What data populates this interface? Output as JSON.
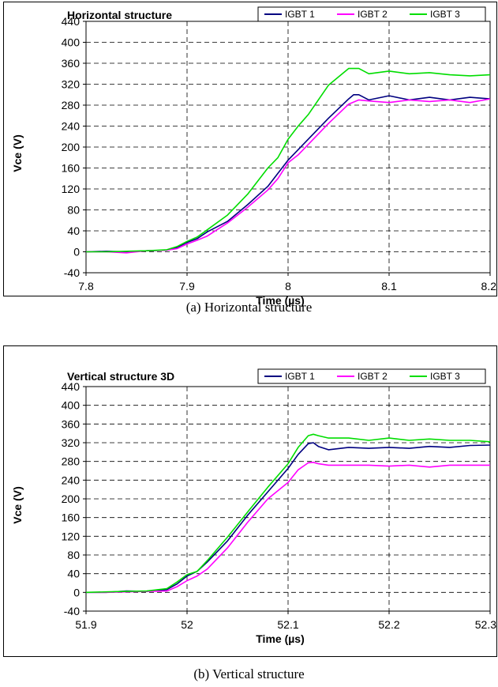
{
  "captions": {
    "a": "(a) Horizontal structure",
    "b": "(b) Vertical structure"
  },
  "chart_data": [
    {
      "type": "line",
      "title": "Horizontal structure",
      "xlabel": "Time (µs)",
      "ylabel": "Vce (V)",
      "xlim": [
        7.8,
        8.2
      ],
      "ylim": [
        -40,
        440
      ],
      "x_ticks": [
        "7.8",
        "7.9",
        "8",
        "8.1",
        "8.2"
      ],
      "y_ticks": [
        "-40",
        "0",
        "40",
        "80",
        "120",
        "160",
        "200",
        "240",
        "280",
        "320",
        "360",
        "400",
        "440"
      ],
      "grid": "dashed vertical and horizontal",
      "legend": "top-right, horizontal",
      "series": [
        {
          "name": "IGBT 1",
          "color": "#000080",
          "x": [
            7.8,
            7.82,
            7.84,
            7.86,
            7.88,
            7.89,
            7.9,
            7.91,
            7.92,
            7.94,
            7.96,
            7.98,
            7.99,
            8.0,
            8.01,
            8.02,
            8.04,
            8.06,
            8.065,
            8.07,
            8.08,
            8.1,
            8.12,
            8.14,
            8.16,
            8.18,
            8.2
          ],
          "y": [
            0,
            1,
            0,
            2,
            3,
            8,
            18,
            25,
            38,
            58,
            90,
            125,
            150,
            175,
            195,
            215,
            255,
            292,
            300,
            300,
            290,
            298,
            290,
            295,
            290,
            295,
            292
          ]
        },
        {
          "name": "IGBT 2",
          "color": "#ff00ff",
          "x": [
            7.8,
            7.82,
            7.84,
            7.86,
            7.88,
            7.89,
            7.9,
            7.91,
            7.92,
            7.94,
            7.96,
            7.98,
            7.99,
            8.0,
            8.01,
            8.02,
            8.04,
            8.06,
            8.07,
            8.08,
            8.1,
            8.12,
            8.14,
            8.16,
            8.18,
            8.2
          ],
          "y": [
            0,
            0,
            -2,
            2,
            3,
            6,
            15,
            22,
            30,
            55,
            85,
            118,
            140,
            170,
            185,
            205,
            245,
            282,
            290,
            288,
            285,
            290,
            287,
            290,
            285,
            292
          ]
        },
        {
          "name": "IGBT 3",
          "color": "#00dd00",
          "x": [
            7.8,
            7.82,
            7.84,
            7.86,
            7.88,
            7.89,
            7.9,
            7.91,
            7.92,
            7.94,
            7.96,
            7.98,
            7.99,
            8.0,
            8.01,
            8.02,
            8.04,
            8.06,
            8.065,
            8.07,
            8.08,
            8.1,
            8.12,
            8.14,
            8.16,
            8.18,
            8.2
          ],
          "y": [
            0,
            0,
            1,
            2,
            4,
            10,
            20,
            28,
            42,
            70,
            110,
            160,
            180,
            215,
            240,
            262,
            318,
            350,
            350,
            350,
            340,
            345,
            340,
            342,
            338,
            336,
            338
          ]
        }
      ]
    },
    {
      "type": "line",
      "title": "Vertical structure 3D",
      "xlabel": "Time (µs)",
      "ylabel": "Vce (V)",
      "xlim": [
        51.9,
        52.3
      ],
      "ylim": [
        -40,
        440
      ],
      "x_ticks": [
        "51.9",
        "52",
        "52.1",
        "52.2",
        "52.3"
      ],
      "y_ticks": [
        "-40",
        "0",
        "40",
        "80",
        "120",
        "160",
        "200",
        "240",
        "280",
        "320",
        "360",
        "400",
        "440"
      ],
      "grid": "dashed vertical and horizontal",
      "legend": "top-right, horizontal",
      "series": [
        {
          "name": "IGBT 1",
          "color": "#000080",
          "x": [
            51.9,
            51.92,
            51.94,
            51.96,
            51.98,
            51.99,
            52.0,
            52.01,
            52.02,
            52.04,
            52.06,
            52.08,
            52.1,
            52.11,
            52.12,
            52.125,
            52.13,
            52.14,
            52.16,
            52.18,
            52.2,
            52.22,
            52.24,
            52.26,
            52.28,
            52.3
          ],
          "y": [
            0,
            0,
            3,
            2,
            6,
            18,
            35,
            45,
            65,
            110,
            165,
            215,
            265,
            295,
            318,
            320,
            312,
            305,
            310,
            308,
            310,
            308,
            312,
            310,
            314,
            315
          ]
        },
        {
          "name": "IGBT 2",
          "color": "#ff00ff",
          "x": [
            51.9,
            51.92,
            51.94,
            51.96,
            51.98,
            51.99,
            52.0,
            52.01,
            52.02,
            52.04,
            52.06,
            52.08,
            52.1,
            52.11,
            52.12,
            52.125,
            52.13,
            52.14,
            52.16,
            52.18,
            52.2,
            52.22,
            52.24,
            52.26,
            52.28,
            52.3
          ],
          "y": [
            0,
            0,
            1,
            2,
            3,
            12,
            25,
            35,
            50,
            95,
            150,
            200,
            235,
            262,
            277,
            278,
            275,
            272,
            272,
            272,
            270,
            272,
            268,
            272,
            272,
            272
          ]
        },
        {
          "name": "IGBT 3",
          "color": "#00dd00",
          "x": [
            51.9,
            51.92,
            51.94,
            51.96,
            51.98,
            51.99,
            52.0,
            52.01,
            52.02,
            52.04,
            52.06,
            52.08,
            52.1,
            52.11,
            52.12,
            52.125,
            52.13,
            52.14,
            52.16,
            52.18,
            52.2,
            52.22,
            52.24,
            52.26,
            52.28,
            52.3
          ],
          "y": [
            0,
            1,
            2,
            3,
            8,
            22,
            38,
            45,
            68,
            118,
            172,
            225,
            275,
            310,
            335,
            338,
            335,
            330,
            330,
            325,
            330,
            325,
            328,
            325,
            325,
            322
          ]
        }
      ]
    }
  ]
}
